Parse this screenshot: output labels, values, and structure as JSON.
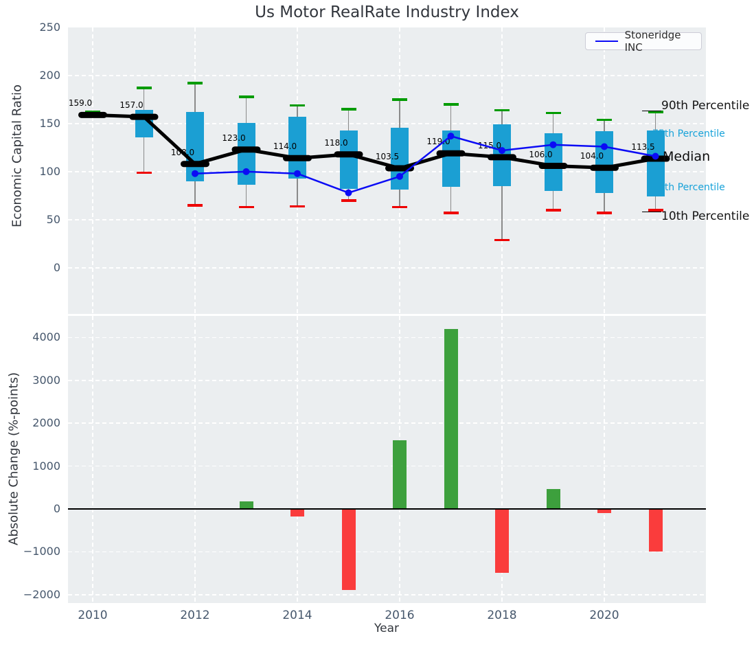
{
  "title": "Us Motor RealRate Industry Index",
  "legend": {
    "label": "Stoneridge INC"
  },
  "annotations": {
    "p90": {
      "text": "90th Percentile"
    },
    "p75": {
      "text": "75th Percentile"
    },
    "median": {
      "text": "Median"
    },
    "p25": {
      "text": "25th Percentile"
    },
    "p10": {
      "text": "10th Percentile"
    }
  },
  "colors": {
    "plot_bg": "#ebeef0",
    "box_fill": "#1b9fd3",
    "whisker": "#8a8a8a",
    "cap_high": "#009b00",
    "cap_low": "#ee0000",
    "median_line": "#000000",
    "company_line": "#0b0bf5",
    "bar_positive": "#3da03d",
    "bar_negative": "#fa3c3c",
    "percentile_label_cyan": "#17a2d9",
    "tick_label": "#46576c",
    "title_text": "#32363d"
  },
  "chart_data": [
    {
      "type": "boxplot",
      "title": "Us Motor RealRate Industry Index",
      "ylabel": "Economic Capital Ratio",
      "years": [
        2010,
        2011,
        2012,
        2013,
        2014,
        2015,
        2016,
        2017,
        2018,
        2019,
        2020,
        2021
      ],
      "series": [
        {
          "name": "90th Percentile",
          "values": [
            162,
            187,
            192,
            178,
            169,
            165,
            175,
            170,
            164,
            161,
            154,
            162
          ]
        },
        {
          "name": "75th Percentile",
          "values": [
            159,
            164,
            162,
            151,
            157,
            143,
            146,
            143,
            149,
            140,
            142,
            143
          ]
        },
        {
          "name": "Median",
          "values": [
            159.0,
            157.0,
            108.0,
            123.0,
            114.0,
            118.0,
            103.5,
            119.0,
            115.0,
            106.0,
            104.0,
            113.5
          ]
        },
        {
          "name": "25th Percentile",
          "values": [
            159,
            136,
            90,
            86,
            93,
            82,
            81,
            84,
            85,
            80,
            78,
            74
          ]
        },
        {
          "name": "10th Percentile",
          "values": [
            159,
            99,
            65,
            63,
            64,
            70,
            63,
            57,
            29,
            60,
            57,
            60
          ]
        },
        {
          "name": "Stoneridge INC",
          "values": [
            null,
            null,
            98,
            100,
            98,
            78,
            95,
            137,
            122,
            128,
            126,
            116
          ]
        }
      ],
      "median_value_labels": [
        159.0,
        157.0,
        108.0,
        123.0,
        114.0,
        118.0,
        103.5,
        119.0,
        115.0,
        106.0,
        104.0,
        113.5
      ],
      "yticks": [
        0,
        50,
        100,
        150,
        200,
        250
      ],
      "ylim": [
        -48,
        250
      ],
      "grid": true,
      "legend_position": "upper right"
    },
    {
      "type": "bar",
      "ylabel": "Absolute Change (%-points)",
      "xlabel": "Year",
      "years": [
        2010,
        2011,
        2012,
        2013,
        2014,
        2015,
        2016,
        2017,
        2018,
        2019,
        2020,
        2021
      ],
      "values": [
        null,
        null,
        null,
        180,
        -180,
        -1890,
        1600,
        4200,
        -1490,
        470,
        -90,
        -990
      ],
      "yticks": [
        -2000,
        -1000,
        0,
        1000,
        2000,
        3000,
        4000
      ],
      "xticks": [
        2010,
        2012,
        2014,
        2016,
        2018,
        2020
      ],
      "ylim": [
        -2196,
        4503
      ],
      "grid": true
    }
  ]
}
